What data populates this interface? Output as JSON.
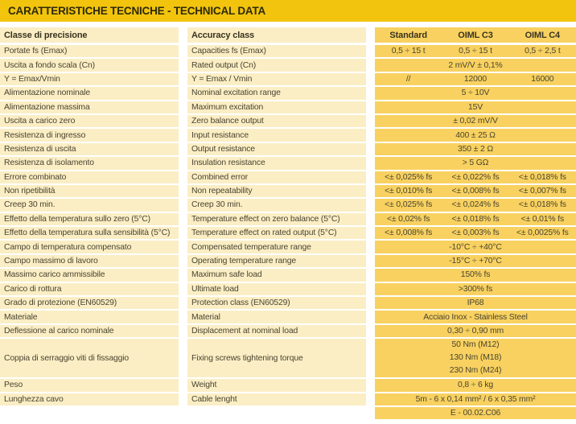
{
  "title": "CARATTERISTICHE TECNICHE - TECHNICAL DATA",
  "colors": {
    "title_bar": "#f2c40e",
    "label_cell": "#fbeec5",
    "value_cell": "#f8d160",
    "separator": "#ffffff",
    "text": "#4a4430"
  },
  "table": {
    "header": {
      "it": "Classe di precisione",
      "en": "Accuracy class",
      "value_cols": [
        "Standard",
        "OIML C3",
        "OIML C4"
      ]
    },
    "rows": [
      {
        "it": "Portate fs (Emax)",
        "en": "Capacities fs (Emax)",
        "type": "triple",
        "values": [
          "0,5 ÷ 15 t",
          "0,5 ÷ 15 t",
          "0,5 ÷ 2,5 t"
        ]
      },
      {
        "it": "Uscita a fondo scala (Cn)",
        "en": "Rated output (Cn)",
        "type": "span",
        "value": "2 mV/V ± 0,1%"
      },
      {
        "it": "Y = Emax/Vmin",
        "en": "Y = Emax / Vmin",
        "type": "triple",
        "values": [
          "//",
          "12000",
          "16000"
        ]
      },
      {
        "it": "Alimentazione nominale",
        "en": "Nominal excitation range",
        "type": "span",
        "value": "5 ÷ 10V"
      },
      {
        "it": "Alimentazione massima",
        "en": "Maximum excitation",
        "type": "span",
        "value": "15V"
      },
      {
        "it": "Uscita a carico zero",
        "en": "Zero balance output",
        "type": "span",
        "value": "± 0,02 mV/V"
      },
      {
        "it": "Resistenza di ingresso",
        "en": "Input resistance",
        "type": "span",
        "value": "400 ± 25 Ω"
      },
      {
        "it": "Resistenza di uscita",
        "en": "Output resistance",
        "type": "span",
        "value": "350 ± 2 Ω"
      },
      {
        "it": "Resistenza di isolamento",
        "en": "Insulation resistance",
        "type": "span",
        "value": "> 5 GΩ"
      },
      {
        "it": "Errore combinato",
        "en": "Combined error",
        "type": "triple",
        "values": [
          "<± 0,025% fs",
          "<± 0,022% fs",
          "<± 0,018% fs"
        ]
      },
      {
        "it": "Non ripetibilità",
        "en": "Non repeatability",
        "type": "triple",
        "values": [
          "<± 0,010% fs",
          "<± 0,008% fs",
          "<± 0,007% fs"
        ]
      },
      {
        "it": "Creep 30 min.",
        "en": "Creep 30 min.",
        "type": "triple",
        "values": [
          "<± 0,025% fs",
          "<± 0,024% fs",
          "<± 0,018% fs"
        ]
      },
      {
        "it": "Effetto della temperatura sullo zero (5°C)",
        "en": "Temperature effect on zero balance (5°C)",
        "type": "triple",
        "values": [
          "<± 0,02% fs",
          "<± 0,018% fs",
          "<± 0,01% fs"
        ]
      },
      {
        "it": "Effetto della temperatura sulla sensibilità (5°C)",
        "en": "Temperature effect on rated output (5°C)",
        "type": "triple",
        "values": [
          "<± 0,008% fs",
          "<± 0,003% fs",
          "<± 0,0025% fs"
        ]
      },
      {
        "it": "Campo di temperatura compensato",
        "en": "Compensated temperature range",
        "type": "span",
        "value": "-10°C ÷ +40°C"
      },
      {
        "it": "Campo massimo di lavoro",
        "en": "Operating temperature range",
        "type": "span",
        "value": "-15°C ÷ +70°C"
      },
      {
        "it": "Massimo carico ammissibile",
        "en": "Maximum safe load",
        "type": "span",
        "value": "150% fs"
      },
      {
        "it": "Carico di rottura",
        "en": "Ultimate load",
        "type": "span",
        "value": ">300% fs"
      },
      {
        "it": "Grado di protezione (EN60529)",
        "en": "Protection class (EN60529)",
        "type": "span",
        "value": "IP68"
      },
      {
        "it": "Materiale",
        "en": "Material",
        "type": "span",
        "value": "Acciaio Inox - Stainless Steel"
      },
      {
        "it": "Deflessione al carico nominale",
        "en": "Displacement at nominal load",
        "type": "span",
        "value": "0,30 ÷ 0,90 mm"
      },
      {
        "it": "Coppia di serraggio viti di fissaggio",
        "en": "Fixing screws tightening torque",
        "type": "multiline",
        "values": [
          "50 Nm (M12)",
          "130 Nm (M18)",
          "230 Nm (M24)"
        ]
      },
      {
        "it": "Peso",
        "en": "Weight",
        "type": "span",
        "value": "0,8 ÷ 6 kg"
      },
      {
        "it": "Lunghezza cavo",
        "en": "Cable lenght",
        "type": "span",
        "value": "5m - 6 x 0,14 mm² / 6 x 0,35 mm²"
      },
      {
        "it": "",
        "en": "",
        "type": "span",
        "value": "E - 00.02.C06",
        "blank_labels": true
      }
    ]
  }
}
